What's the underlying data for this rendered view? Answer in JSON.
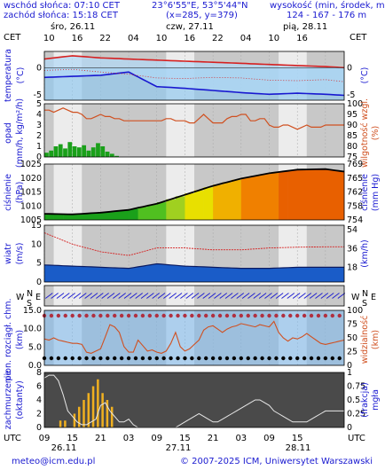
{
  "header": {
    "sunrise": "wschód słońca: 07:10 CET",
    "sunset": "zachód słońca: 15:18 CET",
    "coords": "23°6'55\"E, 53°5'44\"N",
    "grid": "(x=285,  y=379)",
    "height_label": "wysokość (min, środek, max)",
    "height_values": "124 - 167 - 176 m",
    "tz_left": "CET",
    "tz_right": "CET",
    "utc_left": "UTC",
    "utc_right": "UTC"
  },
  "days_top": [
    "śro, 26.11",
    "czw, 27.11",
    "pią, 28.11"
  ],
  "hours_top": [
    "10",
    "16",
    "22",
    "04",
    "10",
    "16",
    "22",
    "04",
    "10",
    "16"
  ],
  "hours_bottom": [
    "09",
    "15",
    "21",
    "03",
    "09",
    "15",
    "21",
    "03",
    "09",
    "15"
  ],
  "days_bottom": [
    "26.11",
    "27.11",
    "28.11"
  ],
  "footer": {
    "email": "meteo@icm.edu.pl",
    "copyright": "© 2007-2025 ICM, Uniwersytet Warszawski"
  },
  "colors": {
    "night": "#c8c8c8",
    "day": "#ececec",
    "temp_red": "#d62020",
    "temp_blue": "#1818d0",
    "precip_green": "#1aa01a",
    "humidity": "#d05020",
    "wind_blue": "#0a3ca8",
    "cloud_yellow": "#f0b020"
  },
  "chart_data": [
    {
      "type": "line",
      "name": "temperatura",
      "ylabel": "temperatura",
      "yunit": "(°C)",
      "ylim": [
        -6,
        3
      ],
      "yticks": [
        "0",
        "-5"
      ],
      "yticks_right": [
        "0",
        "-5"
      ],
      "x_hours": [
        0,
        6,
        12,
        18,
        24,
        30,
        36,
        42,
        48,
        54,
        60,
        64
      ],
      "series": [
        {
          "values": [
            1.6,
            2.2,
            1.8,
            1.6,
            1.4,
            1.2,
            1.0,
            0.8,
            0.6,
            0.4,
            0.2,
            0.0
          ]
        },
        {
          "values": [
            -1.8,
            -1.6,
            -1.4,
            -0.8,
            -3.5,
            -3.8,
            -4.2,
            -4.6,
            -4.9,
            -4.7,
            -4.9,
            -5.1
          ]
        },
        {
          "values": [
            -0.5,
            -0.3,
            -0.8,
            -1.2,
            -1.9,
            -2.0,
            -1.8,
            -1.9,
            -2.3,
            -2.4,
            -2.2,
            -2.6
          ]
        }
      ]
    },
    {
      "type": "bar+line",
      "name": "opad",
      "ylabel": "opad",
      "yunit": "(mm/h, kg/m²/h)",
      "ylim": [
        0,
        5
      ],
      "yticks": [
        "5",
        "4",
        "3",
        "2",
        "1",
        "0"
      ],
      "ylabel_right": "wilgotność wzgl.",
      "yunit_right": "(%)",
      "yticks_right": [
        "100",
        "95",
        "90",
        "85",
        "80",
        "75"
      ],
      "precip": [
        0.4,
        0.6,
        1.0,
        1.2,
        0.8,
        1.4,
        1.0,
        0.9,
        1.1,
        0.6,
        0.9,
        1.3,
        1.0,
        0.5,
        0.3,
        0.1,
        0,
        0,
        0,
        0,
        0,
        0,
        0,
        0,
        0,
        0,
        0,
        0,
        0,
        0,
        0,
        0,
        0,
        0,
        0,
        0,
        0,
        0,
        0,
        0,
        0,
        0,
        0,
        0,
        0,
        0,
        0,
        0,
        0,
        0,
        0,
        0,
        0,
        0,
        0,
        0,
        0,
        0,
        0,
        0,
        0,
        0,
        0,
        0,
        0
      ],
      "humidity": [
        97,
        97,
        96,
        97,
        98,
        97,
        96,
        96,
        95,
        93,
        93,
        94,
        95,
        94,
        94,
        93,
        93,
        92,
        92,
        92,
        92,
        92,
        92,
        92,
        92,
        92,
        93,
        93,
        92,
        92,
        92,
        91,
        91,
        93,
        95,
        93,
        91,
        91,
        91,
        93,
        94,
        94,
        95,
        95,
        92,
        92,
        93,
        93,
        90,
        89,
        89,
        90,
        90,
        89,
        88,
        89,
        90,
        89,
        89,
        89,
        90,
        90,
        90,
        90,
        90
      ]
    },
    {
      "type": "area",
      "name": "ciśnienie",
      "ylabel": "ciśnienie",
      "yunit": "(hPa)",
      "ylim": [
        1005,
        1025
      ],
      "yticks": [
        "1025",
        "1020",
        "1015",
        "1010",
        "1005"
      ],
      "ylabel_right": "ciśnienie",
      "yunit_right": "(mm Hg)",
      "yticks_right": [
        "769",
        "765",
        "762",
        "758",
        "754"
      ],
      "x_hours": [
        0,
        6,
        12,
        18,
        24,
        30,
        36,
        42,
        48,
        54,
        60,
        64
      ],
      "values": [
        1007.2,
        1007.0,
        1007.6,
        1008.6,
        1010.8,
        1014.0,
        1017.2,
        1019.8,
        1021.7,
        1023.0,
        1023.2,
        1022.3
      ]
    },
    {
      "type": "area+line",
      "name": "wiatr",
      "ylabel": "wiatr",
      "yunit": "(m/s)",
      "ylim": [
        0,
        15
      ],
      "yticks": [
        "15",
        "10",
        "5",
        "0"
      ],
      "yunit_right": "(km/h)",
      "yticks_right": [
        "54",
        "36",
        "18"
      ],
      "x_hours": [
        0,
        6,
        12,
        18,
        24,
        30,
        36,
        42,
        48,
        54,
        60,
        64
      ],
      "speed": [
        4.5,
        4.2,
        3.9,
        3.6,
        4.8,
        4.2,
        3.9,
        3.6,
        3.6,
        3.9,
        3.9,
        3.9
      ],
      "gust": [
        13.0,
        10.0,
        8.0,
        7.0,
        9.0,
        9.0,
        8.5,
        8.5,
        9.0,
        9.2,
        9.3,
        9.3
      ]
    },
    {
      "type": "line+scatter",
      "name": "pion. rozciągł. chm.",
      "ylabel": "pion. rozciągł. chm.",
      "yunit": "(km)",
      "ylim": [
        0,
        15
      ],
      "yticks": [
        "15.0",
        "10.0",
        "5.0",
        "0.0"
      ],
      "ylabel_right": "widzialność",
      "yunit_right": "(km)",
      "yticks_right": [
        "100",
        "75",
        "50",
        "25",
        "0"
      ],
      "visibility": [
        48,
        46,
        50,
        46,
        44,
        42,
        40,
        40,
        38,
        24,
        22,
        26,
        30,
        52,
        74,
        70,
        60,
        34,
        24,
        24,
        46,
        36,
        26,
        28,
        24,
        22,
        26,
        40,
        60,
        34,
        26,
        30,
        38,
        46,
        64,
        70,
        72,
        66,
        60,
        66,
        70,
        72,
        76,
        74,
        72,
        70,
        74,
        72,
        70,
        80,
        60,
        50,
        44,
        50,
        48,
        52,
        58,
        52,
        46,
        40,
        38,
        40,
        42,
        44,
        46
      ]
    },
    {
      "type": "bar",
      "name": "zachmurzenie",
      "ylabel": "zachmurzenie",
      "yunit": "(oktanty)",
      "ylim": [
        0,
        8
      ],
      "yticks": [
        "8",
        "6",
        "4",
        "2",
        "0"
      ],
      "ylabel_right": "mgła",
      "yunit_right": "(frakcja)",
      "yticks_right": [
        "1",
        "0.75",
        "0.5",
        "0.25",
        "0"
      ],
      "low_clouds": [
        0,
        0,
        0,
        1,
        1,
        0,
        2,
        3,
        4,
        5,
        6,
        7,
        5,
        4,
        3,
        0,
        0,
        0,
        0,
        0,
        0,
        0,
        0,
        0,
        0,
        0,
        0,
        0,
        0,
        0,
        0,
        0,
        0,
        0,
        0,
        0,
        0,
        0,
        0,
        0,
        0,
        0,
        0,
        0,
        0,
        0,
        0,
        0,
        0,
        0,
        0,
        0,
        0,
        0,
        0,
        0,
        0,
        0,
        0,
        0,
        0,
        0,
        0,
        0,
        0
      ],
      "fog": [
        0.9,
        0.95,
        0.95,
        0.85,
        0.6,
        0.3,
        0.2,
        0.1,
        0.05,
        0.05,
        0.1,
        0.15,
        0.4,
        0.45,
        0.3,
        0.2,
        0.1,
        0.1,
        0.15,
        0.05,
        0.0,
        0.0,
        0.0,
        0.0,
        0.0,
        0.0,
        0.0,
        0.0,
        0.0,
        0.05,
        0.1,
        0.15,
        0.2,
        0.25,
        0.2,
        0.15,
        0.1,
        0.1,
        0.15,
        0.2,
        0.25,
        0.3,
        0.35,
        0.4,
        0.45,
        0.5,
        0.5,
        0.45,
        0.4,
        0.3,
        0.25,
        0.2,
        0.15,
        0.1,
        0.1,
        0.1,
        0.1,
        0.15,
        0.2,
        0.25,
        0.3,
        0.3,
        0.3,
        0.3,
        0.3
      ]
    }
  ]
}
